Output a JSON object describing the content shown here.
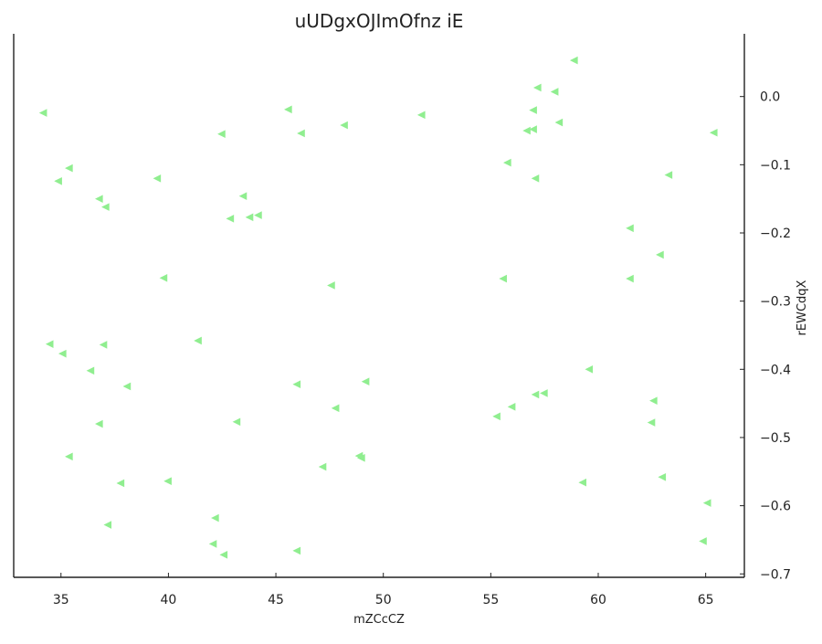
{
  "chart_data": {
    "type": "scatter",
    "title": "uUDgxOJImOfnz iE",
    "xlabel": "mZCcCZ",
    "ylabel": "rEWCdqX",
    "xlim": [
      32.8,
      66.8
    ],
    "ylim": [
      -0.705,
      0.092
    ],
    "x_ticks": [
      35,
      40,
      45,
      50,
      55,
      60,
      65
    ],
    "x_tick_labels": [
      "35",
      "40",
      "45",
      "50",
      "55",
      "60",
      "65"
    ],
    "y_ticks": [
      0.0,
      -0.1,
      -0.2,
      -0.3,
      -0.4,
      -0.5,
      -0.6,
      -0.7
    ],
    "y_tick_labels": [
      "0.0",
      "−0.1",
      "−0.2",
      "−0.3",
      "−0.4",
      "−0.5",
      "−0.6",
      "−0.7"
    ],
    "y_axis_side": "right",
    "grid": false,
    "marker": "triangle-left",
    "marker_color": "#90ee90",
    "series": [
      {
        "points": [
          [
            34.2,
            -0.024
          ],
          [
            35.4,
            -0.105
          ],
          [
            34.9,
            -0.124
          ],
          [
            36.8,
            -0.15
          ],
          [
            37.1,
            -0.162
          ],
          [
            39.5,
            -0.12
          ],
          [
            42.5,
            -0.055
          ],
          [
            45.6,
            -0.019
          ],
          [
            46.2,
            -0.054
          ],
          [
            48.2,
            -0.042
          ],
          [
            51.8,
            -0.027
          ],
          [
            42.9,
            -0.179
          ],
          [
            43.5,
            -0.146
          ],
          [
            43.8,
            -0.177
          ],
          [
            44.2,
            -0.174
          ],
          [
            39.8,
            -0.266
          ],
          [
            47.6,
            -0.277
          ],
          [
            55.6,
            -0.267
          ],
          [
            55.8,
            -0.097
          ],
          [
            57.1,
            -0.12
          ],
          [
            56.7,
            -0.05
          ],
          [
            57.0,
            -0.048
          ],
          [
            57.0,
            -0.02
          ],
          [
            57.2,
            0.013
          ],
          [
            58.0,
            0.007
          ],
          [
            58.2,
            -0.038
          ],
          [
            58.9,
            0.053
          ],
          [
            63.3,
            -0.115
          ],
          [
            65.4,
            -0.053
          ],
          [
            61.5,
            -0.193
          ],
          [
            62.9,
            -0.232
          ],
          [
            61.5,
            -0.267
          ],
          [
            34.5,
            -0.363
          ],
          [
            35.1,
            -0.377
          ],
          [
            37.0,
            -0.364
          ],
          [
            36.4,
            -0.402
          ],
          [
            38.1,
            -0.425
          ],
          [
            41.4,
            -0.358
          ],
          [
            46.0,
            -0.422
          ],
          [
            49.2,
            -0.418
          ],
          [
            47.8,
            -0.457
          ],
          [
            43.2,
            -0.477
          ],
          [
            36.8,
            -0.48
          ],
          [
            35.4,
            -0.528
          ],
          [
            37.8,
            -0.567
          ],
          [
            40.0,
            -0.564
          ],
          [
            47.2,
            -0.543
          ],
          [
            48.9,
            -0.527
          ],
          [
            49.0,
            -0.53
          ],
          [
            55.3,
            -0.469
          ],
          [
            56.0,
            -0.455
          ],
          [
            57.1,
            -0.437
          ],
          [
            57.5,
            -0.435
          ],
          [
            59.6,
            -0.4
          ],
          [
            62.6,
            -0.446
          ],
          [
            62.5,
            -0.478
          ],
          [
            37.2,
            -0.628
          ],
          [
            42.2,
            -0.618
          ],
          [
            42.1,
            -0.656
          ],
          [
            42.6,
            -0.672
          ],
          [
            46.0,
            -0.666
          ],
          [
            59.3,
            -0.566
          ],
          [
            63.0,
            -0.558
          ],
          [
            65.1,
            -0.596
          ],
          [
            64.9,
            -0.652
          ]
        ]
      }
    ]
  }
}
